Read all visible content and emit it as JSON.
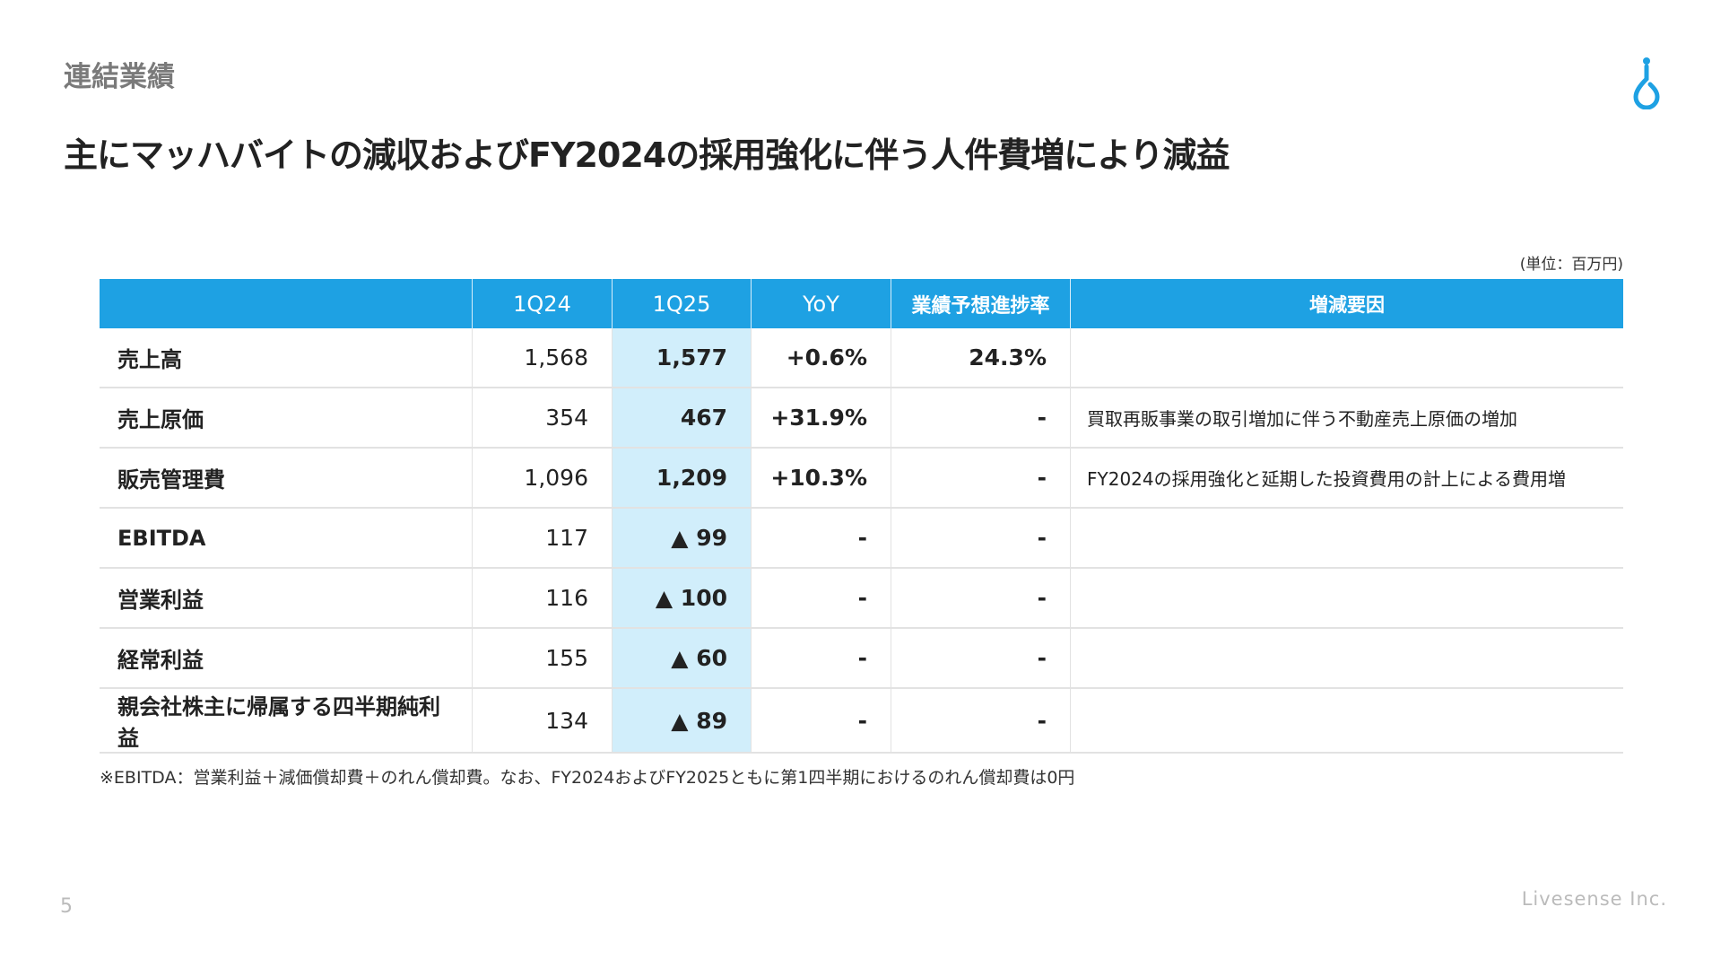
{
  "section_title": "連結業績",
  "headline": "主にマッハバイトの減収およびFY2024の採用強化に伴う人件費増により減益",
  "unit": "(単位：百万円)",
  "table": {
    "headers": [
      "",
      "1Q24",
      "1Q25",
      "YoY",
      "業績予想進捗率",
      "増減要因"
    ],
    "rows": [
      [
        "売上高",
        "1,568",
        "1,577",
        "+0.6%",
        "24.3%",
        ""
      ],
      [
        "売上原価",
        "354",
        "467",
        "+31.9%",
        "-",
        "買取再販事業の取引増加に伴う不動産売上原価の増加"
      ],
      [
        "販売管理費",
        "1,096",
        "1,209",
        "+10.3%",
        "-",
        "FY2024の採用強化と延期した投資費用の計上による費用増"
      ],
      [
        "EBITDA",
        "117",
        "▲ 99",
        "-",
        "-",
        ""
      ],
      [
        "営業利益",
        "116",
        "▲ 100",
        "-",
        "-",
        ""
      ],
      [
        "経常利益",
        "155",
        "▲ 60",
        "-",
        "-",
        ""
      ],
      [
        "親会社株主に帰属する四半期純利益",
        "134",
        "▲ 89",
        "-",
        "-",
        ""
      ]
    ]
  },
  "footnote": "※EBITDA：営業利益＋減価償却費＋のれん償却費。なお、FY2024およびFY2025ともに第1四半期におけるのれん償却費は0円",
  "page_number": "5",
  "brand": "Livesense Inc.",
  "colors": {
    "accent": "#1ea1e3",
    "highlight": "#d1eefb"
  },
  "logo_icon": "water-drop-logo-icon"
}
